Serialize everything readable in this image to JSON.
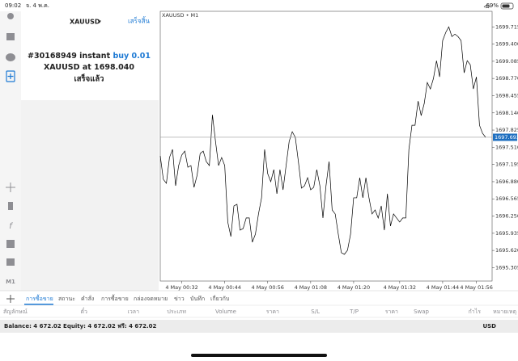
{
  "status_bar": {
    "time": "09:02",
    "date": "จ. 4 พ.ค.",
    "battery": "69%"
  },
  "sidebar": {
    "timeframe": "M1"
  },
  "order_panel": {
    "symbol": "XAUUSD",
    "done": "เสร็จสิ้น",
    "order": "#30168949 instant",
    "action": "buy 0.01",
    "price_prefix": "XAUUSD at",
    "price": "1698.040",
    "status": "เสร็จแล้ว"
  },
  "chart_data": {
    "type": "line",
    "label": "XAUUSD • M1",
    "color": "#000000",
    "last_price": 1697.693,
    "categories": [
      null,
      null,
      null,
      null,
      null,
      null,
      null,
      "4 May 00:32",
      null,
      null,
      null,
      null,
      null,
      null,
      null,
      null,
      null,
      null,
      null,
      null,
      null,
      "4 May 00:44",
      null,
      null,
      null,
      null,
      null,
      null,
      null,
      null,
      null,
      null,
      null,
      null,
      null,
      "4 May 00:56",
      null,
      null,
      null,
      null,
      null,
      null,
      null,
      null,
      null,
      null,
      null,
      null,
      null,
      "4 May 01:08",
      null,
      null,
      null,
      null,
      null,
      null,
      null,
      null,
      null,
      null,
      null,
      null,
      null,
      "4 May 01:20",
      null,
      null,
      null,
      null,
      null,
      null,
      null,
      null,
      null,
      null,
      null,
      null,
      null,
      null,
      "4 May 01:32",
      null,
      null,
      null,
      null,
      null,
      null,
      null,
      null,
      null,
      null,
      null,
      null,
      null,
      "4 May 01:44",
      null,
      null,
      null,
      null,
      null,
      null,
      null,
      null,
      null,
      null,
      "4 May 01:56",
      null,
      null,
      null
    ],
    "values": [
      1697.352,
      1696.923,
      1696.85,
      1697.322,
      1697.47,
      1696.805,
      1697.175,
      1697.367,
      1697.44,
      1697.145,
      1697.175,
      1696.776,
      1696.997,
      1697.396,
      1697.44,
      1697.248,
      1697.175,
      1698.105,
      1697.618,
      1697.175,
      1697.322,
      1697.175,
      1696.141,
      1695.875,
      1696.436,
      1696.466,
      1695.993,
      1696.022,
      1696.215,
      1696.215,
      1695.771,
      1695.919,
      1696.288,
      1696.584,
      1697.47,
      1697.027,
      1696.879,
      1697.101,
      1696.658,
      1697.101,
      1696.731,
      1697.175,
      1697.618,
      1697.795,
      1697.692,
      1697.248,
      1696.761,
      1696.805,
      1696.953,
      1696.731,
      1696.776,
      1697.101,
      1696.805,
      1696.215,
      1696.805,
      1697.248,
      1696.362,
      1696.288,
      1695.919,
      1695.579,
      1695.55,
      1695.624,
      1695.919,
      1696.584,
      1696.584,
      1696.953,
      1696.584,
      1696.953,
      1696.584,
      1696.288,
      1696.362,
      1696.215,
      1696.436,
      1695.993,
      1696.658,
      1696.067,
      1696.288,
      1696.215,
      1696.141,
      1696.215,
      1696.215,
      1697.47,
      1697.913,
      1697.913,
      1698.356,
      1698.09,
      1698.312,
      1698.696,
      1698.578,
      1698.77,
      1699.095,
      1698.799,
      1699.464,
      1699.612,
      1699.715,
      1699.538,
      1699.582,
      1699.538,
      1699.464,
      1698.873,
      1699.095,
      1699.021,
      1698.578,
      1698.799,
      1697.913,
      1697.765,
      1697.693
    ],
    "ylim": [
      1695.06,
      1700.0
    ],
    "yticks": [
      1699.715,
      {
        "value": 1699.4,
        "label": "1699.400"
      },
      1699.085,
      {
        "value": 1698.77,
        "label": "1698.770"
      },
      1698.455,
      {
        "value": 1698.14,
        "label": "1698.140"
      },
      1697.825,
      {
        "value": 1697.51,
        "label": "1697.510"
      },
      1697.195,
      {
        "value": 1696.88,
        "label": "1696.880"
      },
      1696.565,
      {
        "value": 1696.25,
        "label": "1696.250"
      },
      1695.935,
      {
        "value": 1695.62,
        "label": "1695.620"
      },
      1695.305
    ],
    "grid": false
  },
  "tabs": [
    "การซื้อขาย",
    "สถานะ",
    "คำสั่ง",
    "การซื้อขาย",
    "กล่องจดหมาย",
    "ข่าว",
    "บันทึก",
    "เกี่ยวกับ"
  ],
  "table": {
    "columns": [
      "สัญลักษณ์",
      "ตั๋ว",
      "เวลา",
      "ประเภท",
      "Volume",
      "ราคา",
      "S/L",
      "T/P",
      "ราคา",
      "Swap",
      "กำไร",
      "หมายเหตุ"
    ]
  },
  "footer": {
    "balance": "Balance: 4 672.02 Equity: 4 672.02 ฟรี: 4 672.02",
    "currency": "USD"
  }
}
